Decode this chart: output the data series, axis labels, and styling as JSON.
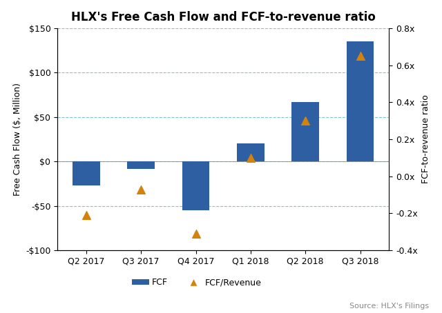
{
  "title": "HLX's Free Cash Flow and FCF-to-revenue ratio",
  "categories": [
    "Q2 2017",
    "Q3 2017",
    "Q4 2017",
    "Q1 2018",
    "Q2 2018",
    "Q3 2018"
  ],
  "fcf_values": [
    -27,
    -8,
    -55,
    20,
    67,
    135
  ],
  "fcf_ratio": [
    -0.21,
    -0.07,
    -0.31,
    0.1,
    0.3,
    0.65
  ],
  "bar_color": "#2E5FA3",
  "marker_color": "#D4820A",
  "ylabel_left": "Free Cash Flow ($, Million)",
  "ylabel_right": "FCF-to-revenue ratio",
  "ylim_left": [
    -100,
    150
  ],
  "ylim_right": [
    -0.4,
    0.8
  ],
  "yticks_left": [
    -100,
    -50,
    0,
    50,
    100,
    150
  ],
  "ytick_labels_left": [
    "-$100",
    "-$50",
    "$0",
    "$50",
    "$100",
    "$150"
  ],
  "yticks_right": [
    -0.4,
    -0.2,
    0.0,
    0.2,
    0.4,
    0.6,
    0.8
  ],
  "ytick_labels_right": [
    "-0.4x",
    "-0.2x",
    "0.0x",
    "0.2x",
    "0.4x",
    "0.6x",
    "0.8x"
  ],
  "source_text": "Source: HLX's Filings",
  "legend_fcf_label": "FCF",
  "legend_ratio_label": "FCF/Revenue",
  "background_color": "#FFFFFF",
  "grid_color": "#7EC8CC",
  "title_fontsize": 12,
  "axis_fontsize": 9,
  "tick_fontsize": 9
}
